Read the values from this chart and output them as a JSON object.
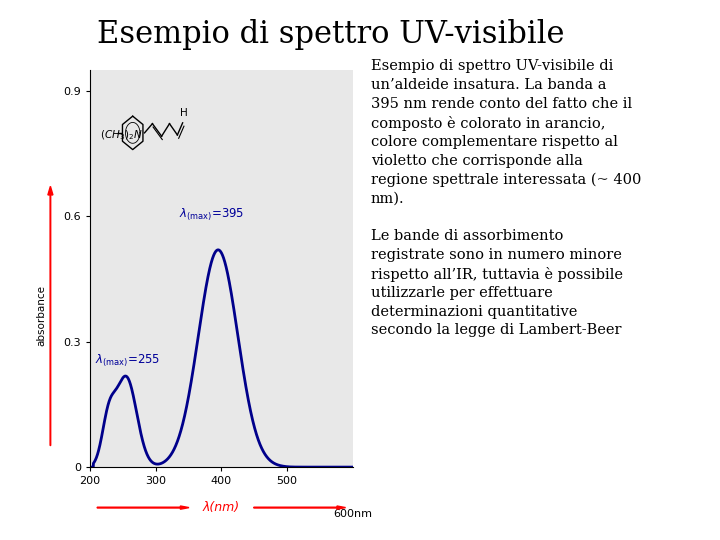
{
  "title": "Esempio di spettro UV-visibile",
  "title_fontsize": 22,
  "bg_color": "#ffffff",
  "plot_bg_color": "#e8e8e8",
  "spectrum_color": "#00008B",
  "spectrum_linewidth": 2.0,
  "xlim": [
    200,
    600
  ],
  "ylim": [
    0,
    0.95
  ],
  "xticks": [
    200,
    300,
    400,
    500
  ],
  "xtick_labels": [
    "200",
    "300",
    "400",
    "500"
  ],
  "yticks": [
    0,
    0.3,
    0.6,
    0.9
  ],
  "ytick_labels": [
    "0",
    "0.3",
    "0.6",
    "0.9"
  ],
  "xlabel_text": "λ(nm)",
  "ylabel_text": "absorbance",
  "peak1_nm": 255,
  "peak1_abs": 0.215,
  "peak2_nm": 395,
  "peak2_abs": 0.52,
  "ann_color": "#000099",
  "ann_fontsize": 8.5,
  "body_text": "Esempio di spettro UV-visibile di\nun’aldeide insatura. La banda a\n395 nm rende conto del fatto che il\ncomposto è colorato in arancio,\ncolore complementare rispetto al\nvioletto che corrisponde alla\nregione spettrale interessata (~ 400\nnm).\n\nLe bande di assorbimento\nregistrate sono in numero minore\nrispetto all’IR, tuttavia è possibile\nutilizzarle per effettuare\ndeterminazioni quantitative\nsecondo la legge di Lambert-Beer",
  "body_fontsize": 10.5
}
